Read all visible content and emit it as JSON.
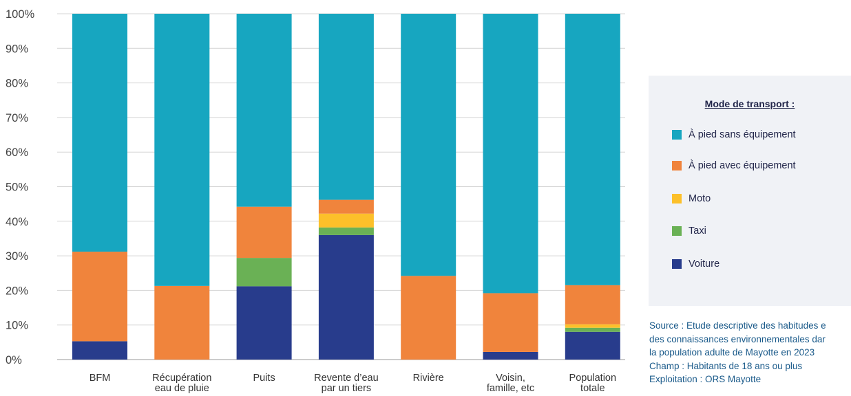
{
  "chart_data": {
    "type": "bar",
    "stacked": true,
    "categories": [
      [
        "BFM"
      ],
      [
        "Récupération",
        "eau de pluie"
      ],
      [
        "Puits"
      ],
      [
        "Revente d’eau",
        "par un tiers"
      ],
      [
        "Rivière"
      ],
      [
        "Voisin,",
        "famille, etc"
      ],
      [
        "Population",
        "totale"
      ]
    ],
    "ylim": [
      0,
      100
    ],
    "yticks": [
      "0%",
      "10%",
      "20%",
      "30%",
      "40%",
      "50%",
      "60%",
      "70%",
      "80%",
      "90%",
      "100%"
    ],
    "grid": true,
    "series": [
      {
        "name": "Voiture",
        "color": "#283c8c",
        "values": [
          5.3,
          0,
          21.2,
          36,
          0,
          2.2,
          8
        ]
      },
      {
        "name": "Taxi",
        "color": "#6ab155",
        "values": [
          0,
          0,
          8.2,
          2.2,
          0,
          0,
          1.2
        ]
      },
      {
        "name": "Moto",
        "color": "#fcc02a",
        "values": [
          0,
          0,
          0,
          4,
          0,
          0,
          1
        ]
      },
      {
        "name": "À pied avec équipement",
        "color": "#f0843c",
        "values": [
          25.9,
          21.3,
          14.8,
          4,
          24.2,
          17,
          11.3
        ]
      },
      {
        "name": "À pied sans équipement",
        "color": "#17a6c0",
        "values": [
          68.8,
          78.7,
          55.8,
          53.8,
          75.8,
          80.8,
          78.5
        ]
      }
    ]
  },
  "legend": {
    "title": "Mode de transport :",
    "items": [
      {
        "label": "À pied sans équipement",
        "color": "#17a6c0"
      },
      {
        "label": "À pied avec équipement",
        "color": "#f0843c"
      },
      {
        "label": "Moto",
        "color": "#fcc02a"
      },
      {
        "label": "Taxi",
        "color": "#6ab155"
      },
      {
        "label": "Voiture",
        "color": "#283c8c"
      }
    ]
  },
  "source": {
    "lines": [
      "Source : Etude descriptive des habitudes e",
      "des connaissances environnementales dar",
      "la population adulte de Mayotte en 2023",
      "Champ : Habitants de 18 ans ou plus",
      "Exploitation : ORS Mayotte"
    ]
  }
}
